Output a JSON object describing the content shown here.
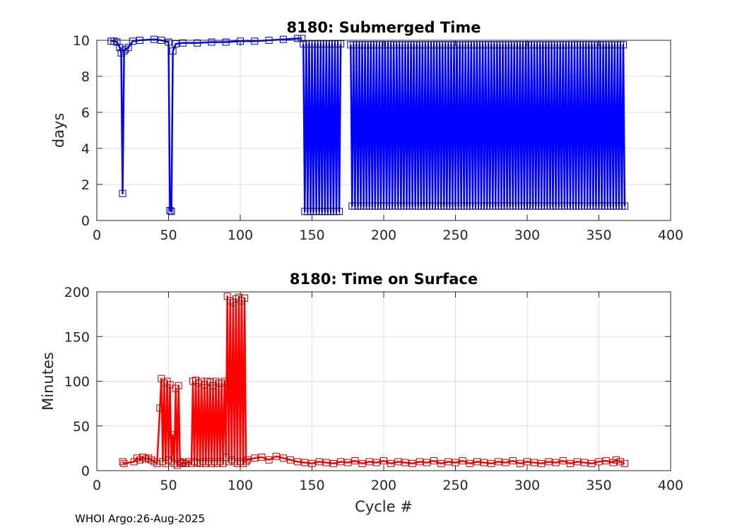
{
  "footer": "WHOI Argo:26-Aug-2025",
  "chart_data": [
    {
      "type": "line",
      "title": "8180: Submerged Time",
      "xlabel": "",
      "ylabel": "days",
      "xlim": [
        0,
        400
      ],
      "ylim": [
        0,
        10
      ],
      "xticks": [
        0,
        50,
        100,
        150,
        200,
        250,
        300,
        350,
        400
      ],
      "yticks": [
        0,
        2,
        4,
        6,
        8,
        10
      ],
      "grid": true,
      "marker": "square",
      "color": "#0000ff",
      "segments": [
        {
          "x": [
            10,
            12,
            14,
            16,
            17,
            18,
            19,
            20,
            22,
            25,
            30,
            40,
            45,
            50,
            51,
            52,
            53,
            55,
            60,
            70,
            80,
            90,
            100,
            110,
            120,
            130,
            140,
            143
          ],
          "y": [
            9.95,
            9.95,
            9.9,
            9.6,
            9.3,
            1.5,
            9.4,
            9.5,
            9.6,
            9.95,
            10.0,
            10.05,
            10.0,
            9.9,
            0.55,
            0.5,
            9.4,
            9.8,
            9.85,
            9.85,
            9.9,
            9.9,
            9.95,
            9.95,
            10.0,
            10.05,
            10.1,
            10.1
          ]
        },
        {
          "x_start": 144,
          "x_end": 170,
          "low_start": 0.5,
          "low_end": 0.5,
          "high": 9.8
        },
        {
          "x_start": 177,
          "x_end": 368,
          "low_start": 0.8,
          "low_end": 0.8,
          "high": 9.75
        }
      ]
    },
    {
      "type": "line",
      "title": "8180: Time on Surface",
      "xlabel": "Cycle #",
      "ylabel": "Minutes",
      "xlim": [
        0,
        400
      ],
      "ylim": [
        0,
        200
      ],
      "xticks": [
        0,
        50,
        100,
        150,
        200,
        250,
        300,
        350,
        400
      ],
      "yticks": [
        0,
        50,
        100,
        150,
        200
      ],
      "grid": true,
      "marker": "square",
      "color": "#ff0000",
      "x": [
        18,
        19,
        26,
        28,
        30,
        32,
        34,
        36,
        38,
        40,
        42,
        44,
        45,
        46,
        47,
        48,
        49,
        50,
        51,
        52,
        53,
        54,
        55,
        56,
        57,
        58,
        59,
        60,
        62,
        64,
        66,
        67,
        68,
        69,
        70,
        71,
        72,
        73,
        74,
        75,
        76,
        77,
        78,
        79,
        80,
        81,
        82,
        83,
        84,
        85,
        86,
        87,
        88,
        89,
        90,
        91,
        92,
        93,
        94,
        95,
        96,
        97,
        98,
        99,
        100,
        101,
        102,
        103,
        104,
        105,
        110,
        115,
        120,
        125,
        130,
        135,
        140,
        145,
        150,
        155,
        160,
        165,
        170,
        175,
        180,
        185,
        190,
        195,
        200,
        205,
        210,
        215,
        220,
        225,
        230,
        235,
        240,
        245,
        250,
        255,
        260,
        265,
        270,
        275,
        280,
        285,
        290,
        295,
        300,
        305,
        310,
        315,
        320,
        325,
        330,
        335,
        340,
        345,
        350,
        355,
        360,
        362,
        365,
        368
      ],
      "y": [
        10,
        8,
        10,
        14,
        12,
        15,
        13,
        14,
        12,
        10,
        8,
        70,
        103,
        10,
        98,
        8,
        100,
        12,
        96,
        10,
        40,
        8,
        92,
        6,
        95,
        10,
        8,
        9,
        8,
        10,
        8,
        100,
        10,
        101,
        9,
        98,
        8,
        100,
        10,
        96,
        8,
        100,
        10,
        99,
        8,
        95,
        10,
        100,
        8,
        98,
        10,
        98,
        8,
        100,
        15,
        195,
        10,
        190,
        12,
        188,
        10,
        192,
        8,
        194,
        10,
        190,
        8,
        193,
        10,
        12,
        14,
        15,
        12,
        16,
        14,
        12,
        10,
        9,
        8,
        10,
        9,
        8,
        10,
        9,
        11,
        8,
        10,
        9,
        11,
        8,
        10,
        9,
        8,
        10,
        9,
        11,
        8,
        10,
        9,
        11,
        8,
        10,
        9,
        8,
        10,
        9,
        11,
        8,
        10,
        9,
        8,
        10,
        9,
        11,
        8,
        10,
        9,
        8,
        10,
        11,
        9,
        12,
        10,
        8
      ]
    }
  ]
}
